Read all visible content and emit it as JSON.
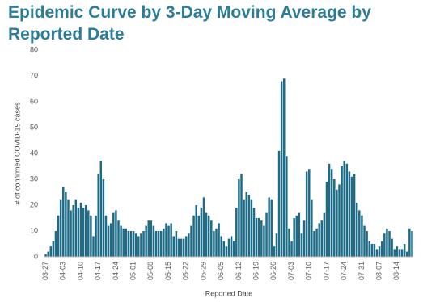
{
  "chart_data": {
    "type": "bar",
    "title": "Epidemic Curve by 3-Day Moving Average by Reported Date",
    "y_label": "# of confirmed COVID-19 cases",
    "x_label": "Reported Date",
    "categories": [
      "03-27",
      null,
      null,
      null,
      null,
      null,
      null,
      "04-03",
      null,
      null,
      null,
      null,
      null,
      null,
      "04-10",
      null,
      null,
      null,
      null,
      null,
      null,
      "04-17",
      null,
      null,
      null,
      null,
      null,
      null,
      "04-24",
      null,
      null,
      null,
      null,
      null,
      null,
      "05-01",
      null,
      null,
      null,
      null,
      null,
      null,
      "05-08",
      null,
      null,
      null,
      null,
      null,
      null,
      "05-15",
      null,
      null,
      null,
      null,
      null,
      null,
      "05-22",
      null,
      null,
      null,
      null,
      null,
      null,
      "05-29",
      null,
      null,
      null,
      null,
      null,
      null,
      "06-05",
      null,
      null,
      null,
      null,
      null,
      null,
      "06-12",
      null,
      null,
      null,
      null,
      null,
      null,
      "06-19",
      null,
      null,
      null,
      null,
      null,
      null,
      "06-26",
      null,
      null,
      null,
      null,
      null,
      null,
      "07-03",
      null,
      null,
      null,
      null,
      null,
      null,
      "07-10",
      null,
      null,
      null,
      null,
      null,
      null,
      "07-17",
      null,
      null,
      null,
      null,
      null,
      null,
      "07-24",
      null,
      null,
      null,
      null,
      null,
      null,
      "07-31",
      null,
      null,
      null,
      null,
      null,
      null,
      "08-07",
      null,
      null,
      null,
      null,
      null,
      null,
      "08-14",
      null,
      null,
      null,
      null,
      null,
      null
    ],
    "values": [
      1,
      2,
      4,
      6,
      10,
      16,
      22,
      27,
      25,
      22,
      18,
      20,
      22,
      19,
      21,
      19,
      20,
      18,
      16,
      8,
      16,
      32,
      37,
      30,
      16,
      12,
      13,
      17,
      18,
      14,
      12,
      11,
      11,
      10,
      10,
      10,
      9,
      8,
      9,
      10,
      12,
      14,
      14,
      12,
      10,
      10,
      10,
      11,
      13,
      12,
      13,
      8,
      10,
      7,
      7,
      7,
      8,
      9,
      12,
      16,
      20,
      16,
      19,
      23,
      17,
      16,
      14,
      10,
      11,
      13,
      8,
      6,
      4,
      7,
      8,
      6,
      19,
      30,
      32,
      22,
      25,
      24,
      22,
      19,
      15,
      15,
      14,
      12,
      17,
      23,
      22,
      4,
      9,
      41,
      68,
      69,
      39,
      11,
      6,
      15,
      16,
      17,
      9,
      14,
      33,
      34,
      22,
      10,
      11,
      13,
      14,
      17,
      29,
      36,
      34,
      30,
      26,
      28,
      35,
      37,
      36,
      33,
      31,
      32,
      21,
      18,
      16,
      12,
      10,
      6,
      5,
      5,
      3,
      4,
      6,
      9,
      11,
      10,
      7,
      3,
      4,
      3,
      3,
      5,
      2,
      11,
      10
    ],
    "color": "#1d6b86",
    "ylim": [
      0,
      80
    ],
    "yticks": [
      0,
      10,
      20,
      30,
      40,
      50,
      60,
      70,
      80
    ],
    "grid": false
  }
}
